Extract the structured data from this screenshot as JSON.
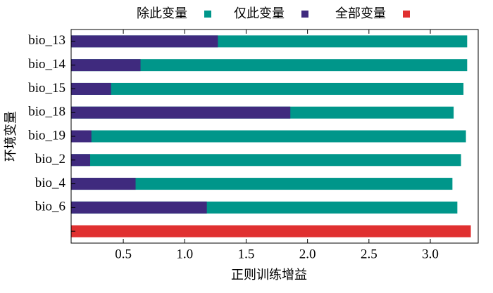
{
  "chart_data": {
    "type": "barh",
    "xlabel": "正则训练增益",
    "ylabel": "环境变量",
    "categories": [
      "bio_13",
      "bio_14",
      "bio_15",
      "bio_18",
      "bio_19",
      "bio_2",
      "bio_4",
      "bio_6",
      null
    ],
    "series": [
      {
        "name": "除此变量",
        "color": "#00968a",
        "values": [
          3.3,
          3.3,
          3.27,
          3.19,
          3.29,
          3.25,
          3.18,
          3.22,
          null
        ]
      },
      {
        "name": "仅此变量",
        "color": "#3f2a7e",
        "values": [
          1.27,
          0.64,
          0.4,
          1.86,
          0.24,
          0.23,
          0.6,
          1.18,
          null
        ]
      },
      {
        "name": "全部变量",
        "color": "#e03030",
        "values": [
          null,
          null,
          null,
          null,
          null,
          null,
          null,
          null,
          3.33
        ]
      }
    ],
    "xlim": [
      0.075,
      3.39
    ],
    "xticks": [
      0.5,
      {
        "value": 1.0,
        "label": "1.0"
      },
      1.5,
      {
        "value": 2.0,
        "label": "2.0"
      },
      2.5,
      {
        "value": 3.0,
        "label": "3.0"
      }
    ],
    "legend": "top"
  }
}
